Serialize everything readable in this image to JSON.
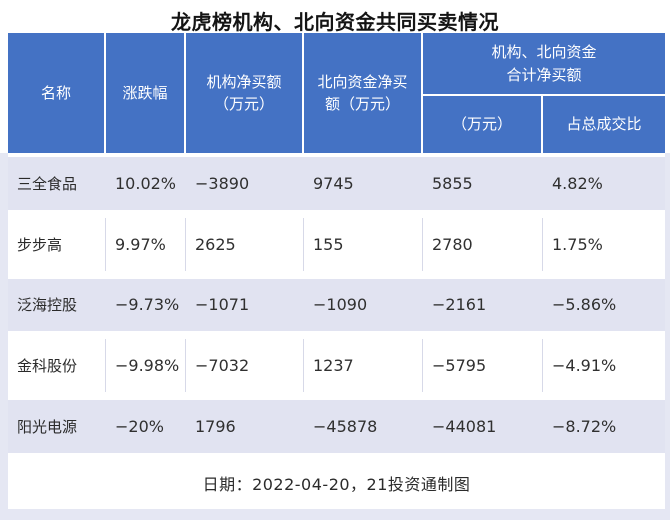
{
  "title": "龙虎榜机构、北向资金共同买卖情况",
  "colors": {
    "header_bg": "#4472c4",
    "header_text": "#ffffff",
    "stripe_row_bg": "#e1e3f1",
    "page_panel_bg": "#e5e7f3",
    "divider": "#d7d9e8",
    "body_text": "#303030"
  },
  "header": {
    "name": "名称",
    "change": "涨跌幅",
    "inst_net_buy": "机构净买额\n（万元）",
    "north_net_buy": "北向资金净买\n额（万元）",
    "group_title": "机构、北向资金\n合计净买额",
    "group_sub_amount": "（万元）",
    "group_sub_ratio": "占总成交比"
  },
  "chart_data": {
    "type": "table",
    "title": "龙虎榜机构、北向资金共同买卖情况",
    "columns": [
      "名称",
      "涨跌幅",
      "机构净买额（万元）",
      "北向资金净买额（万元）",
      "机构、北向资金合计净买额（万元）",
      "机构、北向资金合计净买额占总成交比"
    ],
    "rows": [
      {
        "name": "三全食品",
        "change": "10.02%",
        "inst": "−3890",
        "north": "9745",
        "total": "5855",
        "ratio": "4.82%"
      },
      {
        "name": "步步高",
        "change": "9.97%",
        "inst": "2625",
        "north": "155",
        "total": "2780",
        "ratio": "1.75%"
      },
      {
        "name": "泛海控股",
        "change": "−9.73%",
        "inst": "−1071",
        "north": "−1090",
        "total": "−2161",
        "ratio": "−5.86%"
      },
      {
        "name": "金科股份",
        "change": "−9.98%",
        "inst": "−7032",
        "north": "1237",
        "total": "−5795",
        "ratio": "−4.91%"
      },
      {
        "name": "阳光电源",
        "change": "−20%",
        "inst": "1796",
        "north": "−45878",
        "total": "−44081",
        "ratio": "−8.72%"
      }
    ],
    "footnote": "日期：2022-04-20，21投资通制图"
  }
}
